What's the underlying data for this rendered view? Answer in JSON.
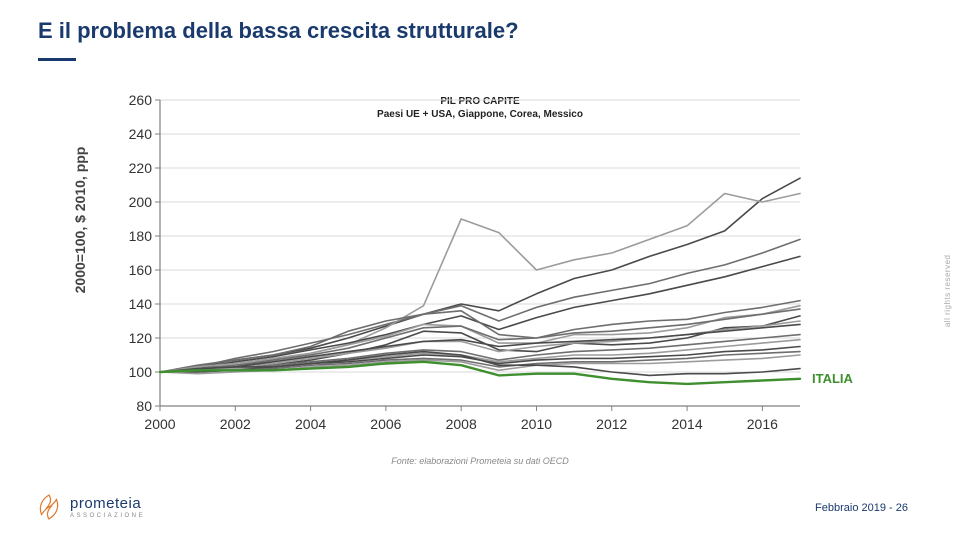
{
  "title": "E il problema della bassa crescita strutturale?",
  "chart": {
    "title_line1": "PIL PRO CAPITE",
    "title_line2": "Paesi UE + USA, Giappone, Corea, Messico",
    "ylabel": "2000=100, $ 2010, ppp",
    "ylim": [
      80,
      260
    ],
    "ytick_step": 20,
    "xlim": [
      2000,
      2017
    ],
    "xtick_step": 2,
    "grid_color": "#d9d9d9",
    "axis_color": "#808080",
    "background_color": "#ffffff",
    "series_color_gray": "#6e6e6e",
    "series_color_gray_light": "#9c9c9c",
    "series_color_gray_dark": "#4a4a4a",
    "highlight_color": "#3f8f2f",
    "highlight_label": "ITALIA",
    "line_width_gray": 1.6,
    "line_width_highlight": 2.4,
    "series_gray": [
      [
        100,
        103,
        107,
        110,
        114,
        120,
        127,
        134,
        140,
        136,
        146,
        155,
        160,
        168,
        175,
        183,
        202,
        214
      ],
      [
        100,
        103,
        108,
        112,
        117,
        122,
        128,
        134,
        139,
        130,
        138,
        144,
        148,
        152,
        158,
        163,
        170,
        178
      ],
      [
        100,
        101,
        103,
        107,
        111,
        116,
        126,
        139,
        190,
        182,
        160,
        166,
        170,
        178,
        186,
        205,
        200,
        205
      ],
      [
        100,
        102,
        106,
        109,
        113,
        117,
        122,
        128,
        133,
        125,
        132,
        138,
        142,
        146,
        151,
        156,
        162,
        168
      ],
      [
        100,
        104,
        107,
        110,
        115,
        124,
        130,
        134,
        136,
        122,
        120,
        125,
        128,
        130,
        131,
        135,
        138,
        142
      ],
      [
        100,
        103,
        105,
        108,
        111,
        116,
        121,
        128,
        127,
        117,
        117,
        122,
        122,
        123,
        126,
        132,
        134,
        139
      ],
      [
        100,
        100,
        102,
        104,
        107,
        111,
        116,
        124,
        123,
        113,
        112,
        117,
        116,
        117,
        120,
        126,
        127,
        133
      ],
      [
        100,
        102,
        104,
        107,
        110,
        114,
        120,
        126,
        127,
        119,
        120,
        123,
        124,
        126,
        128,
        131,
        134,
        137
      ],
      [
        100,
        102,
        103,
        105,
        108,
        111,
        114,
        118,
        118,
        112,
        115,
        117,
        118,
        120,
        122,
        125,
        127,
        130
      ],
      [
        100,
        101,
        103,
        106,
        109,
        112,
        115,
        118,
        119,
        115,
        117,
        118,
        119,
        120,
        122,
        124,
        126,
        128
      ],
      [
        100,
        101,
        102,
        104,
        106,
        108,
        111,
        113,
        112,
        107,
        110,
        112,
        113,
        114,
        116,
        118,
        120,
        122
      ],
      [
        100,
        101,
        102,
        103,
        105,
        107,
        109,
        111,
        110,
        106,
        108,
        110,
        110,
        111,
        113,
        115,
        117,
        119
      ],
      [
        100,
        100,
        101,
        103,
        105,
        106,
        108,
        110,
        109,
        105,
        107,
        108,
        108,
        109,
        110,
        112,
        113,
        115
      ],
      [
        100,
        101,
        101,
        102,
        104,
        105,
        107,
        108,
        107,
        103,
        105,
        106,
        106,
        107,
        108,
        110,
        111,
        112
      ],
      [
        100,
        99,
        100,
        101,
        103,
        104,
        106,
        107,
        106,
        101,
        104,
        105,
        105,
        105,
        106,
        107,
        108,
        110
      ],
      [
        100,
        102,
        103,
        103,
        105,
        107,
        110,
        112,
        110,
        104,
        104,
        103,
        100,
        98,
        99,
        99,
        100,
        102
      ]
    ],
    "series_highlight": [
      100,
      101,
      101,
      101,
      102,
      103,
      105,
      106,
      104,
      98,
      99,
      99,
      96,
      94,
      93,
      94,
      95,
      96
    ]
  },
  "source": "Fonte: elaborazioni Prometeia  su dati OECD",
  "footer": "Febbraio 2019 - 26",
  "rights": "all rights reserved",
  "logo": {
    "name": "prometeia",
    "sub": "ASSOCIAZIONE"
  }
}
